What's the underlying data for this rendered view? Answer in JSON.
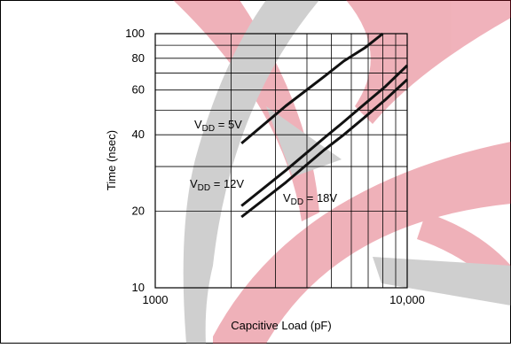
{
  "watermark_color": "#d0102a",
  "chart_data": {
    "type": "line",
    "title": "",
    "xlabel": "Capcitive Load (pF)",
    "ylabel": "Time (nsec)",
    "xscale": "log",
    "yscale": "log",
    "xlim": [
      1000,
      10000
    ],
    "ylim": [
      10,
      100
    ],
    "grid": true,
    "xticks": [
      1000,
      10000
    ],
    "xtick_labels": [
      "1000",
      "10,000"
    ],
    "yticks": [
      10,
      20,
      40,
      60,
      80,
      100
    ],
    "ytick_labels": [
      "10",
      "20",
      "40",
      "60",
      "80",
      "100"
    ],
    "series": [
      {
        "name": "5V",
        "label_prefix": "V",
        "label_sub": "DD",
        "label_suffix": " = 5V",
        "x": [
          2200,
          3300,
          4700,
          5600,
          6800,
          8000
        ],
        "y": [
          37,
          52,
          68,
          78,
          88,
          100
        ]
      },
      {
        "name": "12V",
        "label_prefix": "V",
        "label_sub": "DD",
        "label_suffix": " = 12V",
        "x": [
          2200,
          3300,
          4700,
          5600,
          6800,
          8200,
          10000
        ],
        "y": [
          21,
          29,
          39,
          45,
          53,
          62,
          75
        ]
      },
      {
        "name": "18V",
        "label_prefix": "V",
        "label_sub": "DD",
        "label_suffix": " = 18V",
        "x": [
          2200,
          3300,
          4700,
          5600,
          6800,
          8200,
          10000
        ],
        "y": [
          19,
          26,
          35,
          40,
          47,
          55,
          66
        ]
      }
    ]
  }
}
